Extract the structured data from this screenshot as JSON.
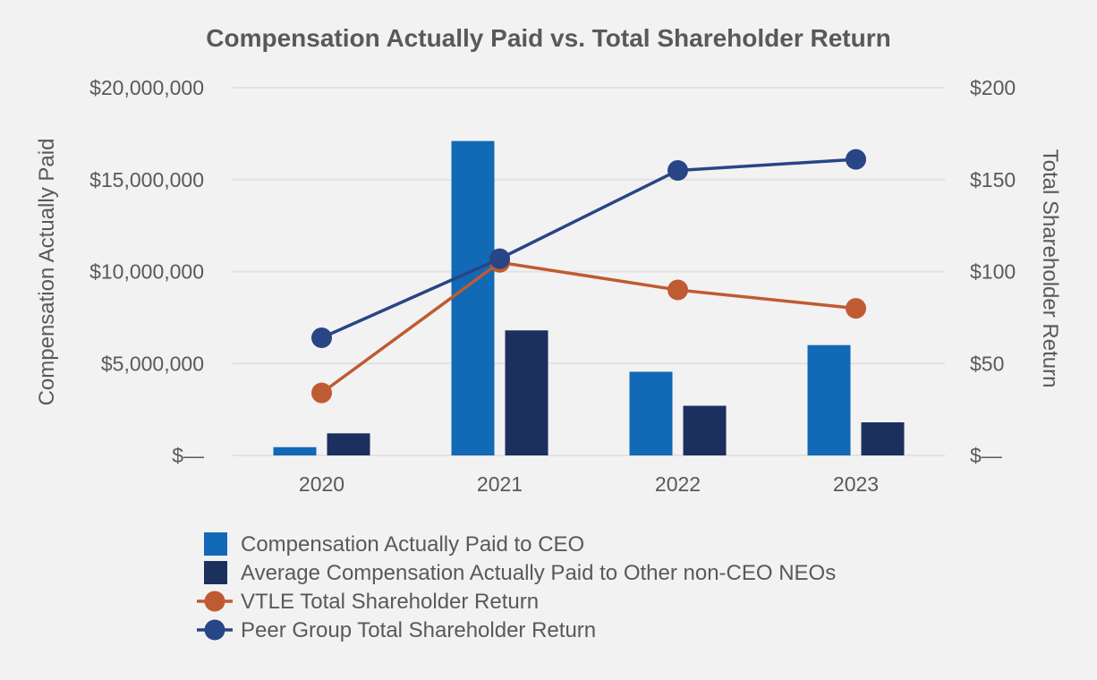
{
  "chart_data": {
    "type": "bar",
    "title": "Compensation Actually Paid vs. Total Shareholder Return",
    "categories": [
      "2020",
      "2021",
      "2022",
      "2023"
    ],
    "ylabel": "Compensation Actually Paid",
    "y2label": "Total Shareholder Return",
    "ylim": [
      0,
      20000000
    ],
    "y2lim": [
      0,
      200
    ],
    "y_ticks": [
      "$—",
      "$5,000,000",
      "$10,000,000",
      "$15,000,000",
      "$20,000,000"
    ],
    "y2_ticks": [
      "$—",
      "$50",
      "$100",
      "$150",
      "$200"
    ],
    "grid": true,
    "legend_position": "bottom",
    "series": [
      {
        "name": "Compensation Actually Paid to CEO",
        "kind": "bar",
        "axis": "left",
        "color": "#1269b5",
        "values": [
          450000,
          17100000,
          4550000,
          6000000
        ]
      },
      {
        "name": "Average Compensation Actually Paid to Other non-CEO NEOs",
        "kind": "bar",
        "axis": "left",
        "color": "#1b305e",
        "values": [
          1200000,
          6800000,
          2700000,
          1800000
        ]
      },
      {
        "name": "VTLE Total Shareholder Return",
        "kind": "line",
        "axis": "right",
        "color": "#c05a32",
        "values": [
          34,
          105,
          90,
          80
        ]
      },
      {
        "name": "Peer Group Total Shareholder Return",
        "kind": "line",
        "axis": "right",
        "color": "#284585",
        "values": [
          64,
          107,
          155,
          161
        ]
      }
    ]
  }
}
